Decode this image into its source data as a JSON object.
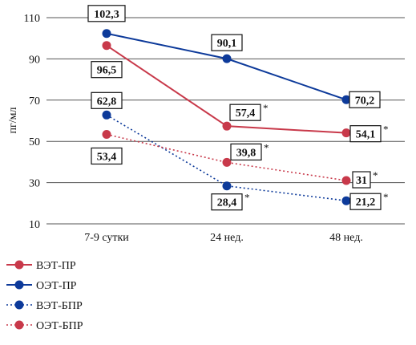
{
  "chart_data": {
    "type": "line",
    "categories": [
      "7-9 сутки",
      "24 нед.",
      "48 нед."
    ],
    "ylabel": "пг/мл",
    "yticks": [
      10,
      30,
      50,
      70,
      90,
      110
    ],
    "ylim": [
      10,
      110
    ],
    "grid": true,
    "legend_position": "bottom-left",
    "series": [
      {
        "name": "ВЭТ-ПР",
        "color": "#c8394a",
        "style": "solid",
        "values": [
          96.5,
          57.4,
          54.1
        ],
        "labels": [
          "96,5",
          "57,4",
          "54,1"
        ],
        "marks": [
          "",
          "*",
          "*"
        ]
      },
      {
        "name": "ОЭТ-ПР",
        "color": "#0d3a9a",
        "style": "solid",
        "values": [
          102.3,
          90.1,
          70.2
        ],
        "labels": [
          "102,3",
          "90,1",
          "70,2"
        ],
        "marks": [
          "",
          "",
          ""
        ]
      },
      {
        "name": "ВЭТ-БПР",
        "color": "#0d3a9a",
        "style": "dotted",
        "values": [
          62.8,
          28.4,
          21.2
        ],
        "labels": [
          "62,8",
          "28,4",
          "21,2"
        ],
        "marks": [
          "",
          "*",
          "*"
        ]
      },
      {
        "name": "ОЭТ-БПР",
        "color": "#c8394a",
        "style": "dotted",
        "values": [
          53.4,
          39.8,
          31
        ],
        "labels": [
          "53,4",
          "39,8",
          "31"
        ],
        "marks": [
          "",
          "*",
          "*"
        ]
      }
    ]
  }
}
